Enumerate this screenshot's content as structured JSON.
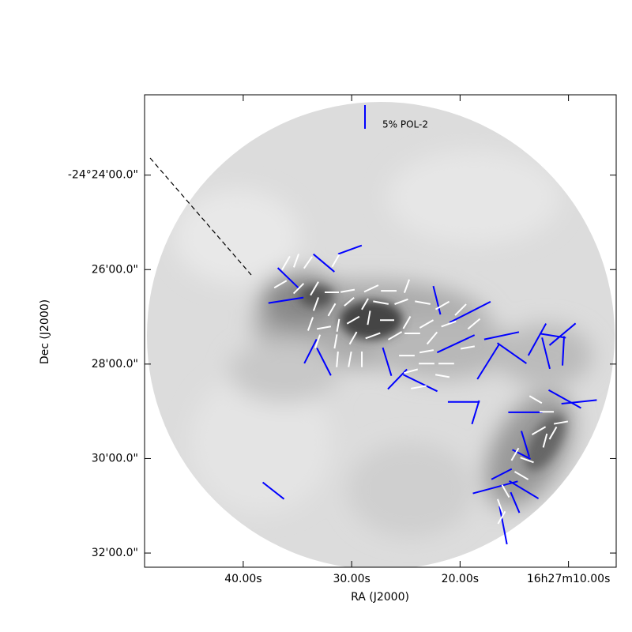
{
  "chart_data": {
    "type": "vector",
    "xlabel": "RA (J2000)",
    "ylabel": "Dec (J2000)",
    "xlim": [
      49.1,
      5.6
    ],
    "ylim": [
      32.3,
      22.3
    ],
    "xticks": [
      {
        "value": 40,
        "label": "40.00s"
      },
      {
        "value": 30,
        "label": "30.00s"
      },
      {
        "value": 20,
        "label": "20.00s"
      },
      {
        "value": 10,
        "label": "16h27m10.00s"
      }
    ],
    "yticks": [
      {
        "value": 24,
        "label": "-24°24'00.0\""
      },
      {
        "value": 26,
        "label": "26'00.0\""
      },
      {
        "value": 28,
        "label": "28'00.0\""
      },
      {
        "value": 30,
        "label": "30'00.0\""
      },
      {
        "value": 32,
        "label": "32'00.0\""
      }
    ],
    "legend": {
      "label": "5% POL-2",
      "length": 5,
      "color": "#0000ff"
    },
    "series": [
      {
        "color": "#0000ff",
        "x": [
          30.16,
          32.56,
          35.84,
          36.06,
          22.14,
          19.08,
          20.39,
          16.17,
          17.4,
          15.22,
          12.89,
          11.43,
          10.55,
          12.08,
          10.48,
          33.8,
          32.56,
          26.73,
          25.78,
          23.67,
          19.66,
          18.57,
          13.98,
          10.34,
          9.02,
          13.98,
          14.34,
          16.17,
          16.75,
          14.12,
          14.93,
          16.02,
          37.22
        ],
        "y": [
          25.58,
          25.86,
          26.18,
          26.65,
          26.65,
          26.9,
          27.57,
          27.4,
          27.95,
          27.77,
          27.48,
          27.4,
          27.37,
          27.77,
          27.72,
          27.73,
          27.95,
          27.95,
          28.32,
          28.4,
          28.8,
          29.02,
          29.02,
          28.74,
          28.8,
          29.69,
          29.91,
          30.33,
          30.61,
          30.66,
          30.93,
          31.41,
          30.68
        ],
        "length": [
          5.3,
          5.8,
          6.2,
          7.5,
          6.2,
          9.7,
          8.7,
          7.5,
          8.7,
          7.5,
          7.7,
          5.5,
          7.2,
          6.8,
          6.2,
          5.7,
          6.5,
          6.2,
          5.8,
          8.0,
          6.7,
          5.2,
          7.2,
          7.8,
          7.5,
          5.7,
          4.3,
          4.8,
          9.8,
          7.2,
          4.7,
          8.2,
          5.7
        ],
        "angle": [
          110,
          50,
          46,
          99,
          14,
          117,
          115,
          102,
          148,
          55,
          151,
          81,
          130,
          14,
          177,
          153,
          27,
          17,
          136,
          64,
          90,
          163,
          90,
          61,
          96,
          17,
          63,
          117,
          105,
          59,
          23,
          11,
          52
        ]
      },
      {
        "color": "#ffffff",
        "x": [
          36.06,
          35.11,
          34.02,
          31.47,
          36.57,
          34.89,
          33.43,
          31.83,
          30.37,
          28.19,
          26.58,
          24.91,
          33.29,
          31.83,
          30.23,
          28.77,
          27.31,
          25.42,
          23.45,
          21.63,
          19.95,
          33.8,
          32.56,
          31.25,
          29.86,
          28.41,
          26.73,
          24.91,
          23.09,
          21.05,
          18.72,
          33.14,
          31.47,
          29.86,
          28.04,
          26.0,
          24.4,
          22.58,
          19.3,
          31.32,
          30.16,
          29.06,
          24.91,
          23.09,
          23.09,
          21.27,
          24.54,
          23.82,
          21.63,
          13.03,
          12.01,
          10.7,
          12.16,
          12.74,
          11.43,
          13.83,
          14.34,
          14.93,
          15.8,
          16.31,
          16.17
        ],
        "y": [
          25.86,
          25.81,
          25.85,
          25.81,
          26.31,
          26.4,
          26.4,
          26.48,
          26.45,
          26.4,
          26.45,
          26.35,
          26.73,
          26.85,
          26.68,
          26.73,
          26.7,
          26.68,
          26.7,
          26.76,
          26.85,
          27.15,
          27.23,
          27.18,
          27.07,
          27.02,
          27.07,
          27.12,
          27.15,
          27.15,
          27.15,
          27.52,
          27.52,
          27.45,
          27.4,
          27.4,
          27.35,
          27.45,
          27.65,
          27.9,
          27.9,
          27.9,
          27.82,
          27.73,
          27.99,
          27.99,
          28.15,
          28.49,
          28.25,
          28.75,
          29.01,
          29.24,
          29.62,
          29.41,
          29.46,
          30.03,
          30.36,
          29.91,
          30.69,
          31.0,
          31.25
        ],
        "length": [
          3.3,
          3.0,
          3.0,
          3.0,
          3.0,
          3.0,
          3.3,
          3.0,
          3.0,
          3.3,
          3.3,
          3.0,
          3.0,
          3.0,
          2.7,
          2.7,
          3.3,
          3.0,
          3.3,
          3.3,
          3.3,
          3.0,
          3.0,
          2.7,
          3.0,
          3.0,
          3.0,
          3.0,
          3.3,
          3.3,
          3.3,
          3.0,
          3.0,
          3.0,
          3.3,
          3.3,
          3.3,
          3.3,
          3.0,
          3.3,
          3.3,
          3.3,
          3.3,
          3.0,
          3.3,
          3.3,
          3.0,
          3.3,
          3.0,
          3.0,
          3.0,
          3.0,
          3.0,
          3.3,
          3.0,
          3.0,
          3.3,
          3.0,
          3.0,
          3.0,
          3.0
        ],
        "angle": [
          150,
          160,
          145,
          150,
          120,
          135,
          150,
          90,
          100,
          115,
          90,
          160,
          160,
          150,
          130,
          150,
          80,
          110,
          80,
          120,
          135,
          160,
          100,
          170,
          120,
          170,
          90,
          150,
          120,
          110,
          130,
          160,
          170,
          150,
          110,
          120,
          90,
          140,
          100,
          175,
          170,
          0,
          90,
          100,
          90,
          90,
          105,
          100,
          80,
          60,
          90,
          100,
          165,
          120,
          150,
          70,
          60,
          150,
          30,
          20,
          150
        ]
      }
    ]
  }
}
